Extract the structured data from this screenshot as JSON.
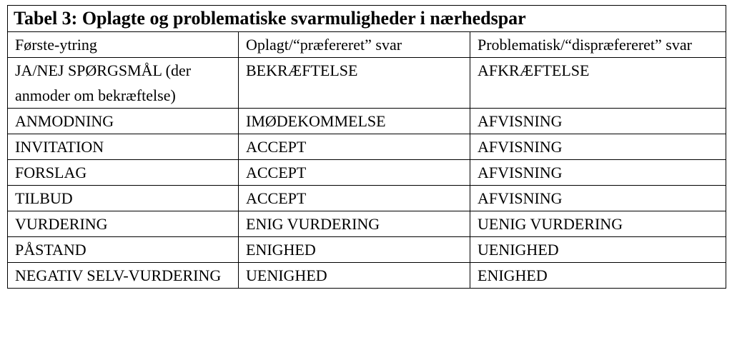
{
  "table": {
    "title": "Tabel 3: Oplagte og problematiske svarmuligheder i nærhedspar",
    "header": [
      "Første-ytring",
      "Oplagt/“præfereret” svar",
      "Problematisk/“dispræfereret” svar"
    ],
    "rows": [
      [
        "JA/NEJ SPØRGSMÅL (der anmoder om bekræftelse)",
        "BEKRÆFTELSE",
        "AFKRÆFTELSE"
      ],
      [
        "ANMODNING",
        "IMØDEKOMMELSE",
        "AFVISNING"
      ],
      [
        "INVITATION",
        "ACCEPT",
        "AFVISNING"
      ],
      [
        "FORSLAG",
        "ACCEPT",
        "AFVISNING"
      ],
      [
        "TILBUD",
        "ACCEPT",
        "AFVISNING"
      ],
      [
        "VURDERING",
        "ENIG VURDERING",
        "UENIG VURDERING"
      ],
      [
        "PÅSTAND",
        "ENIGHED",
        "UENIGHED"
      ],
      [
        "NEGATIV SELV-VURDERING",
        "UENIGHED",
        "ENIGHED"
      ]
    ]
  }
}
